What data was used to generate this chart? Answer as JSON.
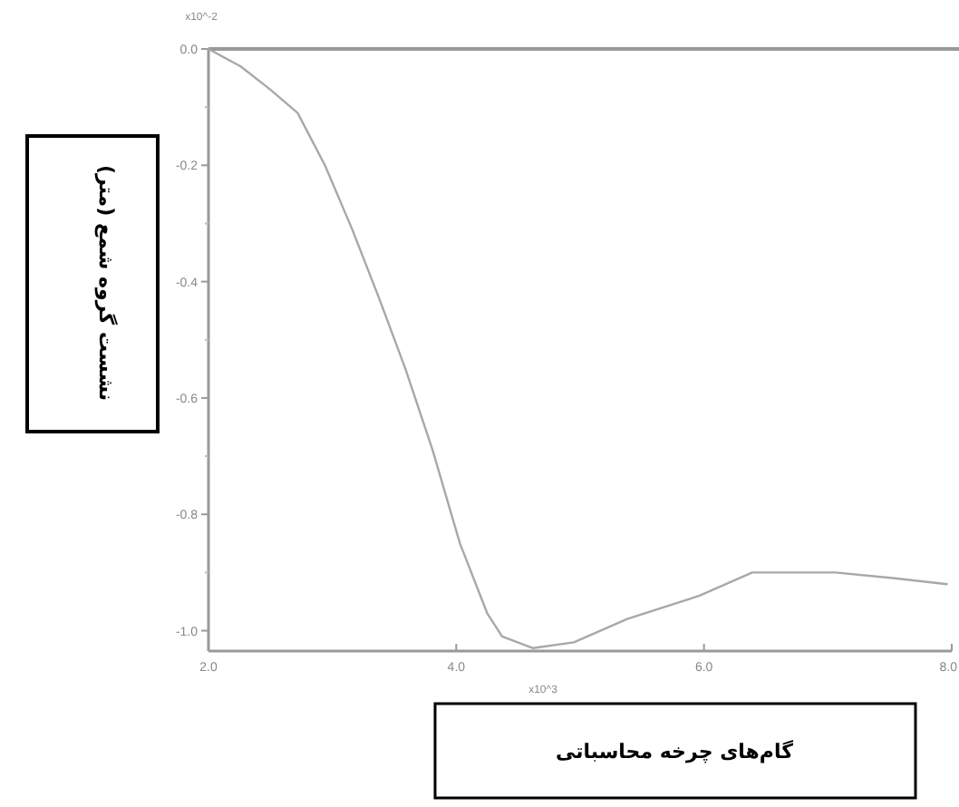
{
  "chart_data": {
    "type": "line",
    "xlabel": "گام‌های چرخه محاسباتی",
    "ylabel": "نشست گروه شمع (متر)",
    "annotations": [
      "x10^-2",
      "x10^3"
    ],
    "xlim": [
      2,
      8
    ],
    "ylim": [
      -1.035,
      0
    ],
    "xticks": [
      {
        "value": 2,
        "label": "2.0"
      },
      {
        "value": 4,
        "label": "4.0"
      },
      {
        "value": 6,
        "label": "6.0"
      },
      {
        "value": 8,
        "label": "8.0"
      }
    ],
    "yticks": [
      {
        "value": 0,
        "label": "0.0"
      },
      {
        "value": -0.2,
        "label": "-0.2"
      },
      {
        "value": -0.4,
        "label": "-0.4"
      },
      {
        "value": -0.6,
        "label": "-0.6"
      },
      {
        "value": -0.8,
        "label": "-0.8"
      },
      {
        "value": -1.0,
        "label": "-1.0"
      }
    ],
    "series": [
      {
        "color": "#a8a8a8",
        "x": [
          2.0,
          2.26,
          2.5,
          2.72,
          2.94,
          3.16,
          3.38,
          3.59,
          3.81,
          4.03,
          4.25,
          4.37,
          4.62,
          4.95,
          5.38,
          5.96,
          6.39,
          6.53,
          7.06,
          7.54,
          7.96
        ],
        "values": [
          0,
          -0.03,
          -0.07,
          -0.11,
          -0.2,
          -0.31,
          -0.43,
          -0.55,
          -0.69,
          -0.85,
          -0.97,
          -1.01,
          -1.03,
          -1.02,
          -0.98,
          -0.94,
          -0.9,
          -0.9,
          -0.9,
          -0.91,
          -0.92
        ]
      }
    ]
  }
}
